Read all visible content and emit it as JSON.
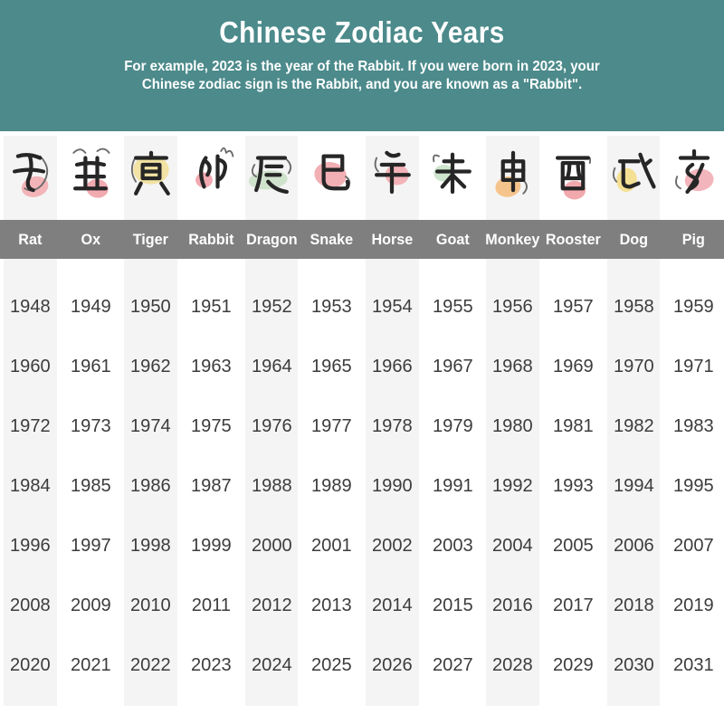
{
  "hero": {
    "title": "Chinese Zodiac Years",
    "subtitle_line1": "For example, 2023 is the year of the Rabbit. If you were born in 2023, your",
    "subtitle_line2": "Chinese zodiac sign is the Rabbit, and you are known as a \"Rabbit\".",
    "background_color": "#4c8a8b",
    "text_color": "#ffffff"
  },
  "zodiac": {
    "header_row_background": "#7f7f7f",
    "header_text_color": "#ffffff",
    "stripe_color": "#f4f4f4",
    "year_text_color": "#3c3c3c",
    "ink_color": "#262626",
    "sketch_color": "#6a6a6a",
    "columns": [
      {
        "name": "Rat",
        "branch": "子",
        "blob_color": "#f3b4b8"
      },
      {
        "name": "Ox",
        "branch": "丑",
        "blob_color": "#f2aab1"
      },
      {
        "name": "Tiger",
        "branch": "寅",
        "blob_color": "#f2e2a3"
      },
      {
        "name": "Rabbit",
        "branch": "卯",
        "blob_color": "#f2a9b0"
      },
      {
        "name": "Dragon",
        "branch": "辰",
        "blob_color": "#cfe3cc"
      },
      {
        "name": "Snake",
        "branch": "巳",
        "blob_color": "#f2b0b4"
      },
      {
        "name": "Horse",
        "branch": "午",
        "blob_color": "#f3b3b8"
      },
      {
        "name": "Goat",
        "branch": "未",
        "blob_color": "#cde4cd"
      },
      {
        "name": "Monkey",
        "branch": "申",
        "blob_color": "#f4c48c"
      },
      {
        "name": "Rooster",
        "branch": "酉",
        "blob_color": "#f2a9ad"
      },
      {
        "name": "Dog",
        "branch": "戌",
        "blob_color": "#f4e092"
      },
      {
        "name": "Pig",
        "branch": "亥",
        "blob_color": "#f3b5bc"
      }
    ]
  },
  "chart_data": {
    "type": "table",
    "title": "Chinese Zodiac Years",
    "columns": [
      "Rat",
      "Ox",
      "Tiger",
      "Rabbit",
      "Dragon",
      "Snake",
      "Horse",
      "Goat",
      "Monkey",
      "Rooster",
      "Dog",
      "Pig"
    ],
    "rows": [
      [
        1948,
        1949,
        1950,
        1951,
        1952,
        1953,
        1954,
        1955,
        1956,
        1957,
        1958,
        1959
      ],
      [
        1960,
        1961,
        1962,
        1963,
        1964,
        1965,
        1966,
        1967,
        1968,
        1969,
        1970,
        1971
      ],
      [
        1972,
        1973,
        1974,
        1975,
        1976,
        1977,
        1978,
        1979,
        1980,
        1981,
        1982,
        1983
      ],
      [
        1984,
        1985,
        1986,
        1987,
        1988,
        1989,
        1990,
        1991,
        1992,
        1993,
        1994,
        1995
      ],
      [
        1996,
        1997,
        1998,
        1999,
        2000,
        2001,
        2002,
        2003,
        2004,
        2005,
        2006,
        2007
      ],
      [
        2008,
        2009,
        2010,
        2011,
        2012,
        2013,
        2014,
        2015,
        2016,
        2017,
        2018,
        2019
      ],
      [
        2020,
        2021,
        2022,
        2023,
        2024,
        2025,
        2026,
        2027,
        2028,
        2029,
        2030,
        2031
      ]
    ]
  }
}
